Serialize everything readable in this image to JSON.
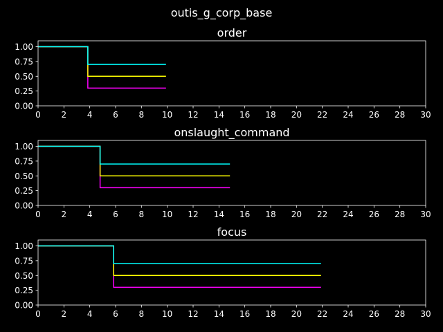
{
  "figure_title": "outis_g_corp_base",
  "colors": {
    "background": "#000000",
    "foreground": "#ffffff",
    "cyan": "#00ffff",
    "yellow": "#ffff00",
    "magenta": "#ff00ff"
  },
  "chart_data": [
    {
      "type": "line",
      "title": "order",
      "xlim": [
        0,
        30
      ],
      "ylim": [
        0,
        1.1
      ],
      "xticks": [
        0,
        2,
        4,
        6,
        8,
        10,
        12,
        14,
        16,
        18,
        20,
        22,
        24,
        26,
        28,
        30
      ],
      "yticks": [
        0.0,
        0.25,
        0.5,
        0.75,
        1.0
      ],
      "xtick_labels": [
        "0",
        "2",
        "4",
        "6",
        "8",
        "10",
        "12",
        "14",
        "16",
        "18",
        "20",
        "22",
        "24",
        "26",
        "28",
        "30"
      ],
      "ytick_labels": [
        "0.00",
        "0.25",
        "0.50",
        "0.75",
        "1.00"
      ],
      "series": [
        {
          "color": "#ff00ff",
          "x": [
            0,
            3.85,
            3.85,
            9.9
          ],
          "y": [
            1.0,
            1.0,
            0.3,
            0.3
          ]
        },
        {
          "color": "#ffff00",
          "x": [
            0,
            3.85,
            3.85,
            9.9
          ],
          "y": [
            1.0,
            1.0,
            0.5,
            0.5
          ]
        },
        {
          "color": "#00ffff",
          "x": [
            0,
            3.85,
            3.85,
            9.9
          ],
          "y": [
            1.0,
            1.0,
            0.7,
            0.7
          ]
        }
      ]
    },
    {
      "type": "line",
      "title": "onslaught_command",
      "xlim": [
        0,
        30
      ],
      "ylim": [
        0,
        1.1
      ],
      "xticks": [
        0,
        2,
        4,
        6,
        8,
        10,
        12,
        14,
        16,
        18,
        20,
        22,
        24,
        26,
        28,
        30
      ],
      "yticks": [
        0.0,
        0.25,
        0.5,
        0.75,
        1.0
      ],
      "xtick_labels": [
        "0",
        "2",
        "4",
        "6",
        "8",
        "10",
        "12",
        "14",
        "16",
        "18",
        "20",
        "22",
        "24",
        "26",
        "28",
        "30"
      ],
      "ytick_labels": [
        "0.00",
        "0.25",
        "0.50",
        "0.75",
        "1.00"
      ],
      "series": [
        {
          "color": "#ff00ff",
          "x": [
            0,
            4.8,
            4.8,
            14.85
          ],
          "y": [
            1.0,
            1.0,
            0.3,
            0.3
          ]
        },
        {
          "color": "#ffff00",
          "x": [
            0,
            4.8,
            4.8,
            14.85
          ],
          "y": [
            1.0,
            1.0,
            0.5,
            0.5
          ]
        },
        {
          "color": "#00ffff",
          "x": [
            0,
            4.8,
            4.8,
            14.85
          ],
          "y": [
            1.0,
            1.0,
            0.7,
            0.7
          ]
        }
      ]
    },
    {
      "type": "line",
      "title": "focus",
      "xlim": [
        0,
        30
      ],
      "ylim": [
        0,
        1.1
      ],
      "xticks": [
        0,
        2,
        4,
        6,
        8,
        10,
        12,
        14,
        16,
        18,
        20,
        22,
        24,
        26,
        28,
        30
      ],
      "yticks": [
        0.0,
        0.25,
        0.5,
        0.75,
        1.0
      ],
      "xtick_labels": [
        "0",
        "2",
        "4",
        "6",
        "8",
        "10",
        "12",
        "14",
        "16",
        "18",
        "20",
        "22",
        "24",
        "26",
        "28",
        "30"
      ],
      "ytick_labels": [
        "0.00",
        "0.25",
        "0.50",
        "0.75",
        "1.00"
      ],
      "series": [
        {
          "color": "#ff00ff",
          "x": [
            0,
            5.85,
            5.85,
            21.9
          ],
          "y": [
            1.0,
            1.0,
            0.3,
            0.3
          ]
        },
        {
          "color": "#ffff00",
          "x": [
            0,
            5.85,
            5.85,
            21.9
          ],
          "y": [
            1.0,
            1.0,
            0.5,
            0.5
          ]
        },
        {
          "color": "#00ffff",
          "x": [
            0,
            5.85,
            5.85,
            21.9
          ],
          "y": [
            1.0,
            1.0,
            0.7,
            0.7
          ]
        }
      ]
    }
  ]
}
